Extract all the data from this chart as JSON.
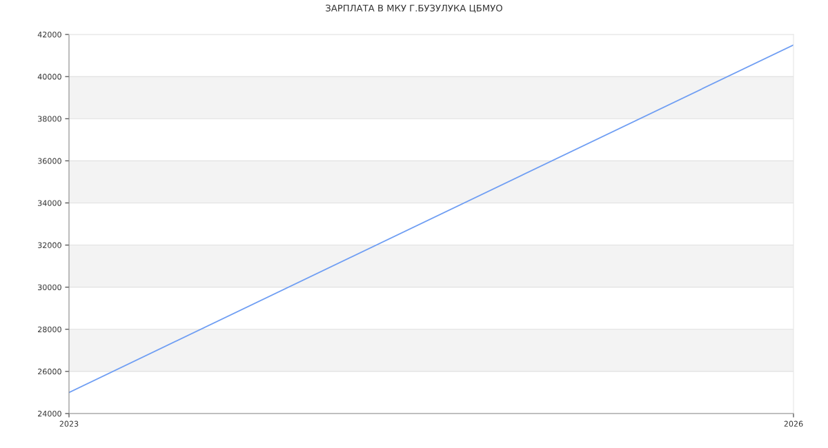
{
  "chart_data": {
    "type": "line",
    "title": "ЗАРПЛАТА В МКУ Г.БУЗУЛУКА ЦБМУО",
    "x": [
      2023,
      2026
    ],
    "series": [
      {
        "color": "#6f9ef3",
        "values": [
          25000,
          41500
        ]
      }
    ],
    "xlim": [
      2023,
      2026
    ],
    "xticks": [
      2023,
      2026
    ],
    "ylim": [
      24000,
      42000
    ],
    "yticks": [
      24000,
      26000,
      28000,
      30000,
      32000,
      34000,
      36000,
      38000,
      40000,
      42000
    ],
    "grid": "y",
    "marker": "none",
    "line_style": "solid"
  }
}
